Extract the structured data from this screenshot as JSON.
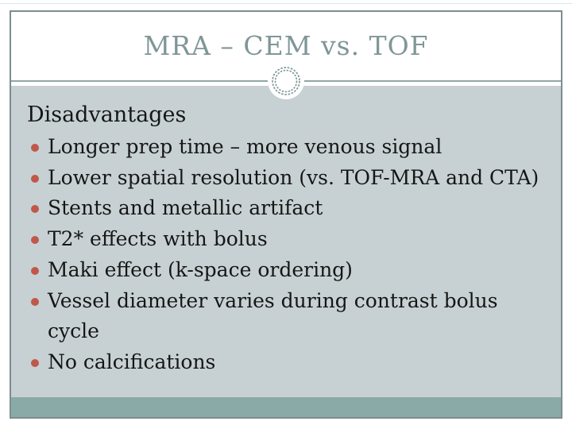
{
  "slide": {
    "title": "MRA – CEM vs. TOF",
    "heading": "Disadvantages",
    "bullets": [
      "Longer prep time – more venous signal",
      "Lower spatial resolution (vs. TOF-MRA and CTA)",
      "Stents and metallic artifact",
      "T2* effects with bolus",
      "Maki effect (k-space ordering)",
      "Vessel diameter varies during contrast bolus cycle",
      "No calcifications"
    ],
    "colors": {
      "accent_teal": "#7f9697",
      "body_bg": "#c7d1d4",
      "bottom_band": "#8aaaa8",
      "frame_border": "#7d8d8f",
      "bullet_dot": "#c0584a",
      "body_text": "#161616",
      "top_hairline": "#dbe7e7"
    }
  }
}
